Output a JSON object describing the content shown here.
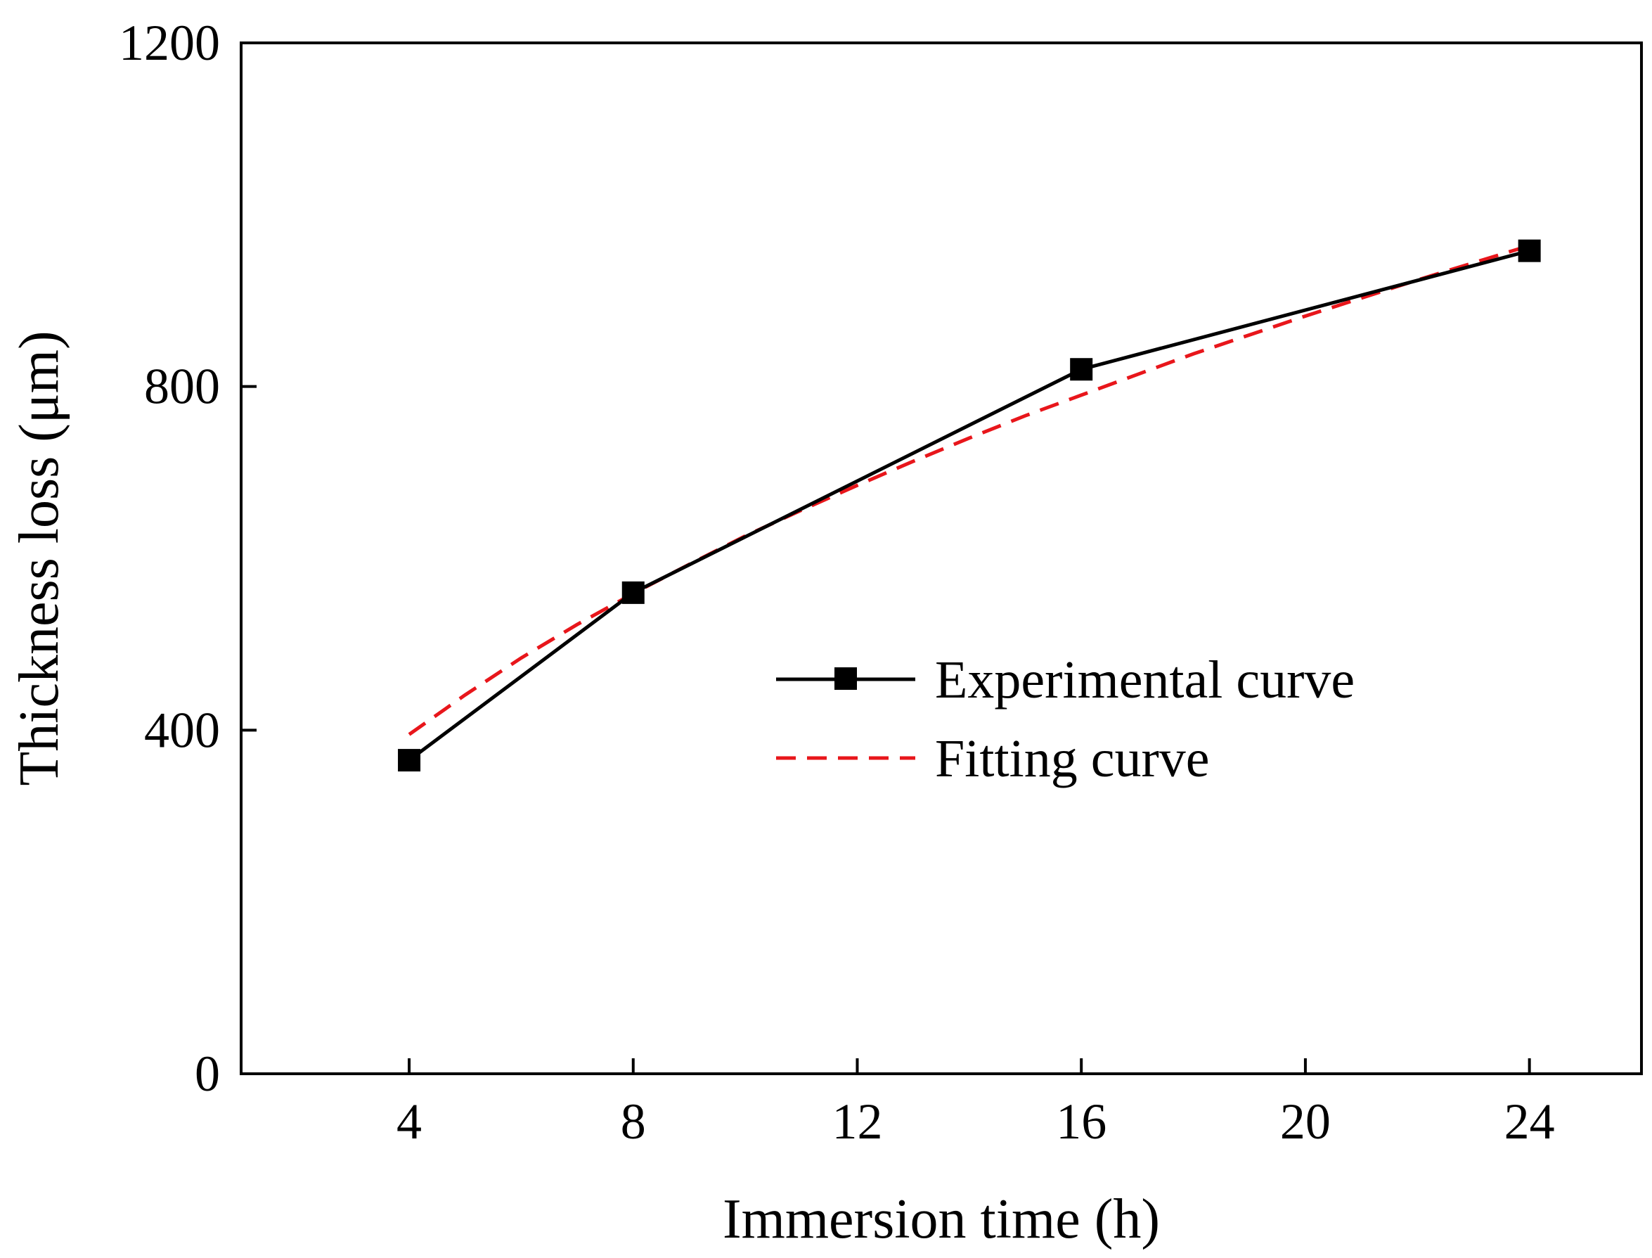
{
  "chart_data": {
    "type": "line",
    "title": "",
    "xlabel": "Immersion time (h)",
    "ylabel": "Thickness loss (μm)",
    "xlim": [
      1,
      26
    ],
    "ylim": [
      0,
      1200
    ],
    "xticks": [
      4,
      8,
      12,
      16,
      20,
      24
    ],
    "yticks": [
      0,
      400,
      800,
      1200
    ],
    "grid": false,
    "legend_position": "center-right",
    "series": [
      {
        "name": "Experimental curve",
        "style": "solid-square-marker",
        "color": "#000000",
        "x": [
          4,
          8,
          16,
          24
        ],
        "y": [
          365,
          560,
          820,
          958
        ]
      },
      {
        "name": "Fitting curve",
        "style": "dashed",
        "color": "#e8161b",
        "x": [
          4,
          5,
          6,
          7,
          8,
          9,
          10,
          11,
          12,
          13,
          14,
          15,
          16,
          17,
          18,
          19,
          20,
          21,
          22,
          23,
          24
        ],
        "y": [
          395,
          441,
          484,
          523,
          559,
          593,
          626,
          656,
          685,
          713,
          740,
          766,
          790,
          814,
          838,
          860,
          882,
          903,
          924,
          944,
          964
        ]
      }
    ]
  }
}
